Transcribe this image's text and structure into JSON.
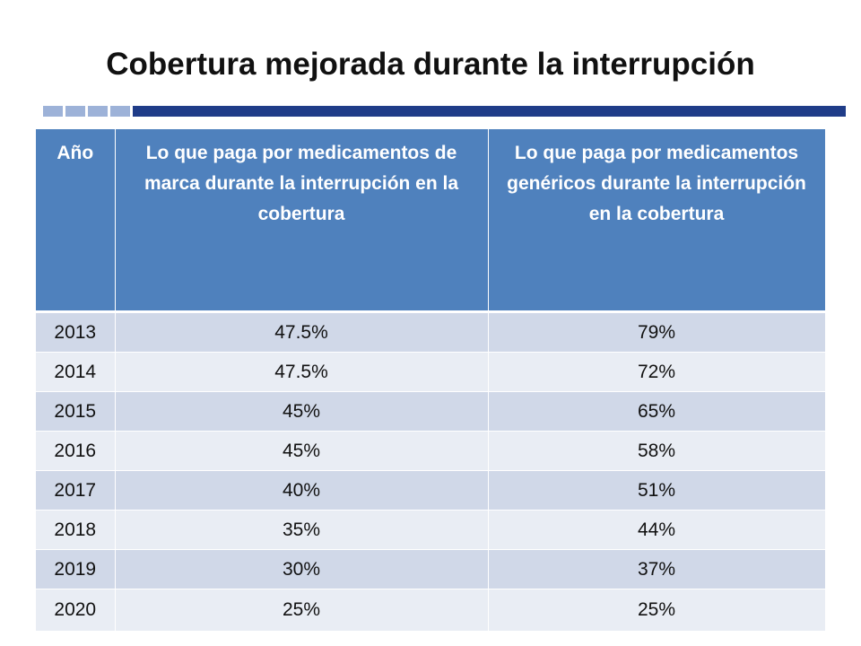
{
  "title": "Cobertura mejorada durante la interrupción",
  "table": {
    "headers": [
      "Año",
      "Lo que paga por medicamentos de marca durante la interrupción  en la cobertura",
      "Lo que paga por medicamentos genéricos durante la interrupción en la cobertura"
    ],
    "rows": [
      {
        "year": "2013",
        "brand": "47.5%",
        "generic": "79%"
      },
      {
        "year": "2014",
        "brand": "47.5%",
        "generic": "72%"
      },
      {
        "year": "2015",
        "brand": "45%",
        "generic": "65%"
      },
      {
        "year": "2016",
        "brand": "45%",
        "generic": "58%"
      },
      {
        "year": "2017",
        "brand": "40%",
        "generic": "51%"
      },
      {
        "year": "2018",
        "brand": "35%",
        "generic": "44%"
      },
      {
        "year": "2019",
        "brand": "30%",
        "generic": "37%"
      },
      {
        "year": "2020",
        "brand": "25%",
        "generic": "25%"
      }
    ]
  },
  "colors": {
    "header_bg": "#4f81bd",
    "row_odd": "#d0d8e8",
    "row_even": "#e9edf4",
    "divider_bar": "#1f3c88",
    "divider_blocks": "#9db2d8"
  }
}
